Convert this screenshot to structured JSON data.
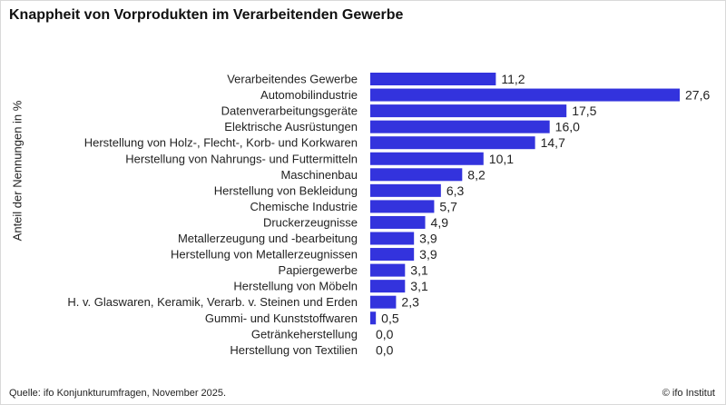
{
  "title": "Knappheit von Vorprodukten im Verarbeitenden Gewerbe",
  "footer": {
    "source": "Quelle: ifo Konjunkturumfragen,  November 2025.",
    "copyright": "© ifo Institut"
  },
  "colors": {
    "bar": "#3333dd",
    "text": "#222222"
  },
  "chart_data": {
    "type": "bar",
    "orientation": "horizontal",
    "ylabel": "Anteil der Nennungen in %",
    "xlabel": "",
    "xlim": [
      0,
      27.6
    ],
    "grid": false,
    "categories": [
      "Verarbeitendes Gewerbe",
      "Automobilindustrie",
      "Datenverarbeitungsgeräte",
      "Elektrische Ausrüstungen",
      "Herstellung von Holz-, Flecht-, Korb- und Korkwaren",
      "Herstellung von Nahrungs- und Futtermitteln",
      "Maschinenbau",
      "Herstellung von Bekleidung",
      "Chemische Industrie",
      "Druckerzeugnisse",
      "Metallerzeugung und -bearbeitung",
      "Herstellung von Metallerzeugnissen",
      "Papiergewerbe",
      "Herstellung von Möbeln",
      "H. v. Glaswaren, Keramik, Verarb. v. Steinen und Erden",
      "Gummi- und Kunststoffwaren",
      "Getränkeherstellung",
      "Herstellung von Textilien"
    ],
    "values": [
      11.2,
      27.6,
      17.5,
      16.0,
      14.7,
      10.1,
      8.2,
      6.3,
      5.7,
      4.9,
      3.9,
      3.9,
      3.1,
      3.1,
      2.3,
      0.5,
      0.0,
      0.0
    ],
    "value_labels": [
      "11,2",
      "27,6",
      "17,5",
      "16,0",
      "14,7",
      "10,1",
      "8,2",
      "6,3",
      "5,7",
      "4,9",
      "3,9",
      "3,9",
      "3,1",
      "3,1",
      "2,3",
      "0,5",
      "0,0",
      "0,0"
    ]
  }
}
